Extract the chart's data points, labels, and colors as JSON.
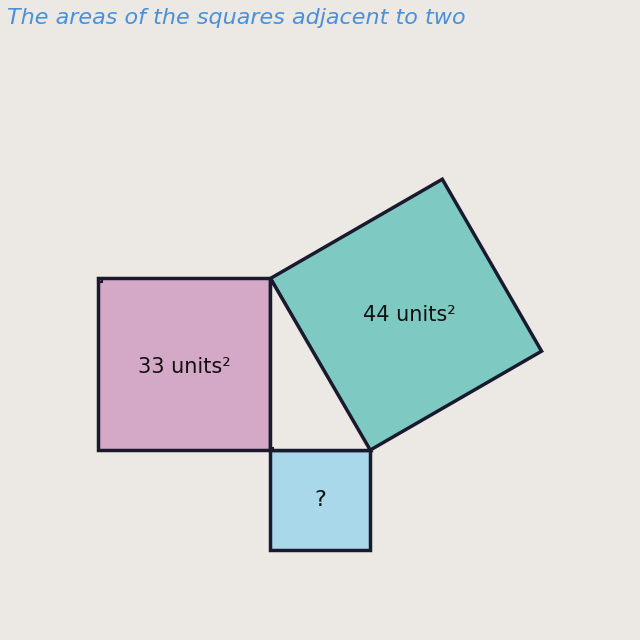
{
  "title": "The areas of the squares adjacent to two",
  "bg_color": "#ece9e4",
  "pink_square_color": "#d4a8c7",
  "pink_square_edge_color": "#1a1a2e",
  "teal_square_color": "#7ecac3",
  "teal_square_edge_color": "#1a1a2e",
  "blue_square_color": "#a8d8ea",
  "blue_square_edge_color": "#1a1a2e",
  "label_33": "33 units²",
  "label_44": "44 units²",
  "label_q": "?",
  "title_color": "#4a90d9",
  "title_fontsize": 16,
  "label_fontsize": 15
}
